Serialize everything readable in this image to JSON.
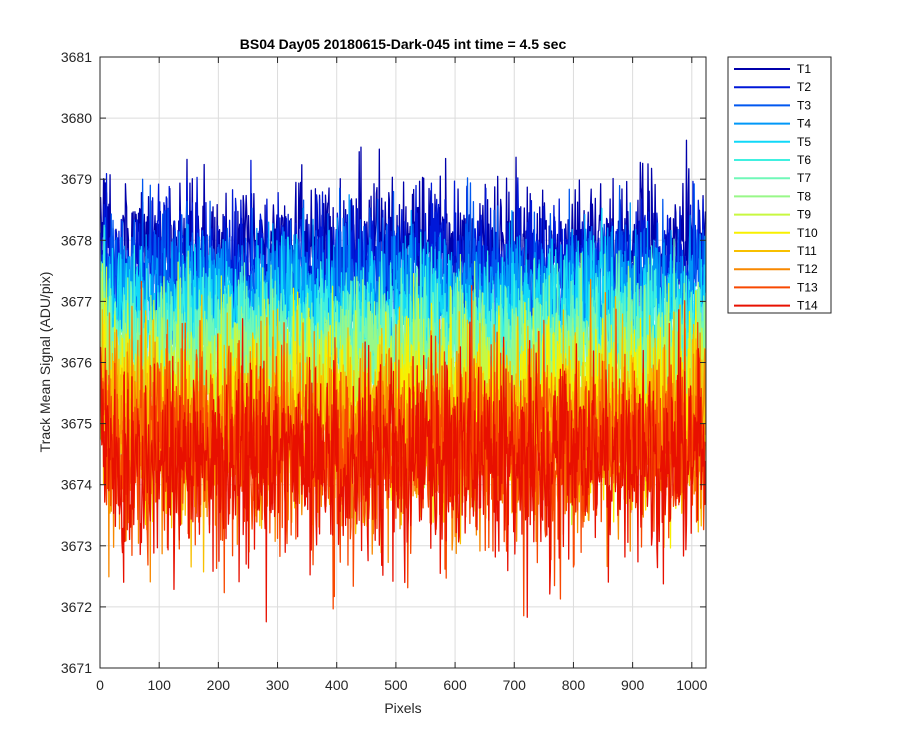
{
  "chart_data": {
    "type": "line",
    "title": "BS04 Day05 20180615-Dark-045 int time = 4.5 sec",
    "xlabel": "Pixels",
    "ylabel": "Track Mean Signal (ADU/pix)",
    "xlim": [
      0,
      1024
    ],
    "ylim": [
      3671,
      3681
    ],
    "xticks": [
      0,
      100,
      200,
      300,
      400,
      500,
      600,
      700,
      800,
      900,
      1000
    ],
    "yticks": [
      3671,
      3672,
      3673,
      3674,
      3675,
      3676,
      3677,
      3678,
      3679,
      3680,
      3681
    ],
    "grid": true,
    "legend_position": "outside-top-right",
    "num_points": 1024,
    "series": [
      {
        "name": "T1",
        "color": "#0000aa",
        "mean": 3677.9,
        "spread": 0.55
      },
      {
        "name": "T2",
        "color": "#0018d8",
        "mean": 3677.6,
        "spread": 0.55
      },
      {
        "name": "T3",
        "color": "#0058f0",
        "mean": 3677.3,
        "spread": 0.55
      },
      {
        "name": "T4",
        "color": "#0098f8",
        "mean": 3677.0,
        "spread": 0.6
      },
      {
        "name": "T5",
        "color": "#10d8f8",
        "mean": 3676.7,
        "spread": 0.6
      },
      {
        "name": "T6",
        "color": "#40f0e0",
        "mean": 3676.4,
        "spread": 0.6
      },
      {
        "name": "T7",
        "color": "#70f8b8",
        "mean": 3676.1,
        "spread": 0.65
      },
      {
        "name": "T8",
        "color": "#98f888",
        "mean": 3675.8,
        "spread": 0.65
      },
      {
        "name": "T9",
        "color": "#c8f840",
        "mean": 3675.5,
        "spread": 0.7
      },
      {
        "name": "T10",
        "color": "#f8f000",
        "mean": 3675.2,
        "spread": 0.7
      },
      {
        "name": "T11",
        "color": "#f8c000",
        "mean": 3675.0,
        "spread": 0.75
      },
      {
        "name": "T12",
        "color": "#f88800",
        "mean": 3674.8,
        "spread": 0.75
      },
      {
        "name": "T13",
        "color": "#f84800",
        "mean": 3674.6,
        "spread": 0.8
      },
      {
        "name": "T14",
        "color": "#e81000",
        "mean": 3674.4,
        "spread": 0.8
      }
    ]
  }
}
